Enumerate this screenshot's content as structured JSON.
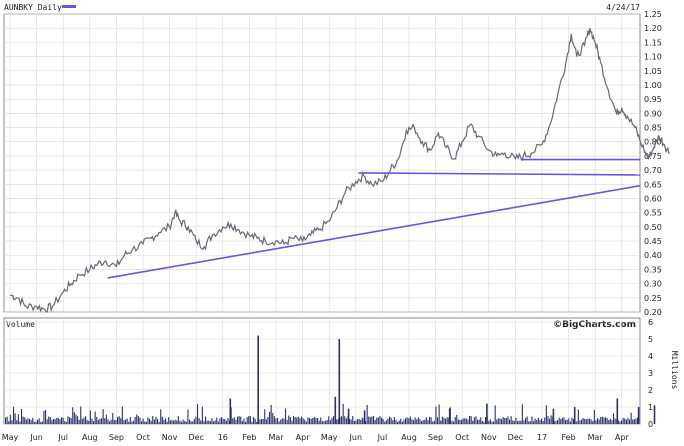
{
  "chart_data": [
    {
      "type": "line",
      "ticker_label": "AUNBKY Daily",
      "date_label": "4/24/17",
      "grid": true,
      "ylim": [
        0.2,
        1.25
      ],
      "y_ticks": [
        "1.25",
        "1.20",
        "1.15",
        "1.10",
        "1.05",
        "1.00",
        "0.95",
        "0.90",
        "0.85",
        "0.80",
        "0.75",
        "0.70",
        "0.65",
        "0.60",
        "0.55",
        "0.50",
        "0.45",
        "0.40",
        "0.35",
        "0.30",
        "0.25",
        "0.20"
      ],
      "x_labels": [
        "May",
        "Jun",
        "Jul",
        "Aug",
        "Sep",
        "Oct",
        "Nov",
        "Dec",
        "16",
        "Feb",
        "Mar",
        "Apr",
        "May",
        "Jun",
        "Jul",
        "Aug",
        "Sep",
        "Oct",
        "Nov",
        "Dec",
        "17",
        "Feb",
        "Mar",
        "Apr"
      ],
      "price_series": {
        "name": "AUNBKY",
        "color": "#666677",
        "points": [
          [
            0,
            0.26
          ],
          [
            0.3,
            0.25
          ],
          [
            0.6,
            0.22
          ],
          [
            1,
            0.22
          ],
          [
            1.3,
            0.21
          ],
          [
            1.6,
            0.22
          ],
          [
            2,
            0.27
          ],
          [
            2.3,
            0.3
          ],
          [
            2.6,
            0.33
          ],
          [
            3,
            0.35
          ],
          [
            3.3,
            0.37
          ],
          [
            3.6,
            0.38
          ],
          [
            4,
            0.36
          ],
          [
            4.3,
            0.4
          ],
          [
            4.6,
            0.42
          ],
          [
            5,
            0.44
          ],
          [
            5.3,
            0.46
          ],
          [
            5.6,
            0.48
          ],
          [
            6,
            0.5
          ],
          [
            6.2,
            0.55
          ],
          [
            6.4,
            0.52
          ],
          [
            6.7,
            0.5
          ],
          [
            7,
            0.45
          ],
          [
            7.3,
            0.43
          ],
          [
            7.6,
            0.47
          ],
          [
            8,
            0.5
          ],
          [
            8.3,
            0.51
          ],
          [
            8.6,
            0.49
          ],
          [
            9,
            0.47
          ],
          [
            9.3,
            0.46
          ],
          [
            9.6,
            0.45
          ],
          [
            10,
            0.45
          ],
          [
            10.3,
            0.44
          ],
          [
            10.6,
            0.46
          ],
          [
            11,
            0.45
          ],
          [
            11.3,
            0.47
          ],
          [
            11.6,
            0.49
          ],
          [
            12,
            0.52
          ],
          [
            12.3,
            0.57
          ],
          [
            12.6,
            0.62
          ],
          [
            13,
            0.66
          ],
          [
            13.3,
            0.68
          ],
          [
            13.6,
            0.65
          ],
          [
            14,
            0.66
          ],
          [
            14.3,
            0.7
          ],
          [
            14.6,
            0.74
          ],
          [
            14.9,
            0.84
          ],
          [
            15.2,
            0.85
          ],
          [
            15.5,
            0.8
          ],
          [
            15.8,
            0.77
          ],
          [
            16.1,
            0.83
          ],
          [
            16.4,
            0.78
          ],
          [
            16.7,
            0.74
          ],
          [
            17,
            0.8
          ],
          [
            17.3,
            0.86
          ],
          [
            17.6,
            0.82
          ],
          [
            18,
            0.77
          ],
          [
            18.3,
            0.75
          ],
          [
            18.6,
            0.76
          ],
          [
            19,
            0.74
          ],
          [
            19.3,
            0.75
          ],
          [
            19.6,
            0.76
          ],
          [
            20,
            0.79
          ],
          [
            20.3,
            0.86
          ],
          [
            20.6,
            0.97
          ],
          [
            20.9,
            1.08
          ],
          [
            21.1,
            1.18
          ],
          [
            21.3,
            1.1
          ],
          [
            21.6,
            1.14
          ],
          [
            21.8,
            1.2
          ],
          [
            22,
            1.15
          ],
          [
            22.2,
            1.08
          ],
          [
            22.5,
            0.98
          ],
          [
            22.8,
            0.9
          ],
          [
            23,
            0.92
          ],
          [
            23.2,
            0.89
          ],
          [
            23.5,
            0.85
          ],
          [
            23.7,
            0.8
          ],
          [
            24,
            0.74
          ],
          [
            24.2,
            0.78
          ],
          [
            24.4,
            0.82
          ],
          [
            24.6,
            0.79
          ],
          [
            24.8,
            0.76
          ]
        ]
      }
    },
    {
      "type": "bar",
      "title": "Volume",
      "brand": "©BigCharts.com",
      "ylabel": "Millions",
      "ylim": [
        0,
        6
      ],
      "y_ticks": [
        "6",
        "5",
        "4",
        "3",
        "2",
        "1",
        "0"
      ],
      "x_labels": [
        "May",
        "Jun",
        "Jul",
        "Aug",
        "Sep",
        "Oct",
        "Nov",
        "Dec",
        "16",
        "Feb",
        "Mar",
        "Apr",
        "May",
        "Jun",
        "Jul",
        "Aug",
        "Sep",
        "Oct",
        "Nov",
        "Dec",
        "17",
        "Feb",
        "Mar",
        "Apr"
      ],
      "color": "#2b2f6b",
      "spikes": [
        [
          8.25,
          1.5
        ],
        [
          9.3,
          5.2
        ],
        [
          12.2,
          1.6
        ],
        [
          12.7,
          0.9
        ],
        [
          12.35,
          5.0
        ],
        [
          13.3,
          0.8
        ],
        [
          16.5,
          0.9
        ],
        [
          17.9,
          1.2
        ],
        [
          20.4,
          0.9
        ],
        [
          21.2,
          1.0
        ],
        [
          22.8,
          1.5
        ],
        [
          23.6,
          1.0
        ],
        [
          24.2,
          1.1
        ]
      ]
    }
  ],
  "trendlines": {
    "color": "#6655dd",
    "lines": [
      {
        "from": [
          3.67,
          0.32
        ],
        "to": [
          25.5,
          0.645
        ]
      },
      {
        "from": [
          13.1,
          0.69
        ],
        "to": [
          25.5,
          0.683
        ]
      },
      {
        "from": [
          19.2,
          0.737
        ],
        "to": [
          25.5,
          0.737
        ]
      }
    ]
  }
}
